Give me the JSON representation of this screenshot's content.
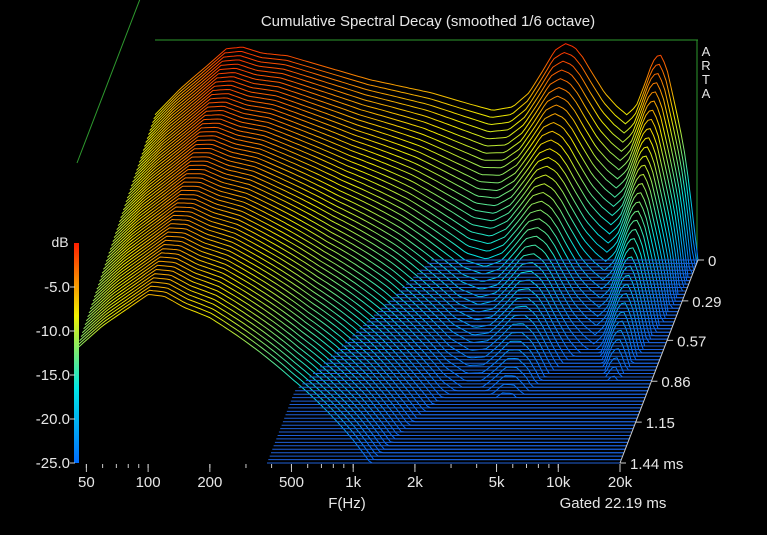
{
  "chart_data": {
    "type": "area",
    "title": "Cumulative Spectral Decay (smoothed 1/6 octave)",
    "xlabel": "F(Hz)",
    "ylabel": "dB",
    "zlabel_unit": "ms",
    "watermark": "ARTA",
    "gate_text": "Gated 22.19 ms",
    "x_scale": "log",
    "xlim": [
      45,
      20000
    ],
    "ylim": [
      -25,
      0
    ],
    "zlim": [
      0,
      1.44
    ],
    "x_ticks": [
      {
        "value": 50,
        "label": "50"
      },
      {
        "value": 100,
        "label": "100"
      },
      {
        "value": 200,
        "label": "200"
      },
      {
        "value": 500,
        "label": "500"
      },
      {
        "value": 1000,
        "label": "1k"
      },
      {
        "value": 2000,
        "label": "2k"
      },
      {
        "value": 5000,
        "label": "5k"
      },
      {
        "value": 10000,
        "label": "10k"
      },
      {
        "value": 20000,
        "label": "20k"
      }
    ],
    "y_ticks": [
      {
        "value": -5,
        "label": "-5.0"
      },
      {
        "value": -10,
        "label": "-10.0"
      },
      {
        "value": -15,
        "label": "-15.0"
      },
      {
        "value": -20,
        "label": "-20.0"
      },
      {
        "value": -25,
        "label": "-25.0"
      }
    ],
    "z_ticks": [
      {
        "value": 0,
        "label": "0"
      },
      {
        "value": 0.29,
        "label": "0.29"
      },
      {
        "value": 0.57,
        "label": "0.57"
      },
      {
        "value": 0.86,
        "label": "0.86"
      },
      {
        "value": 1.15,
        "label": "1.15"
      },
      {
        "value": 1.44,
        "label": "1.44 ms"
      }
    ],
    "colorbar": {
      "min": -25,
      "max": 0,
      "colors": [
        "#0080ff",
        "#00ffff",
        "#ffff00",
        "#ff0000"
      ]
    },
    "base_response": {
      "freq_hz": [
        45,
        60,
        80,
        100,
        120,
        150,
        200,
        300,
        500,
        1000,
        1500,
        2000,
        2500,
        3000,
        3500,
        4000,
        4500,
        5000,
        5500,
        6000,
        7000,
        8000,
        9000,
        10000,
        11000,
        12000,
        13000,
        14000,
        15000,
        16000,
        17000,
        18000,
        20000
      ],
      "db": [
        -8.5,
        -5.5,
        -3.0,
        -1.0,
        -0.8,
        -1.5,
        -1.8,
        -3.0,
        -4.5,
        -6.0,
        -7.2,
        -8.0,
        -7.6,
        -6.0,
        -3.5,
        -1.2,
        -0.4,
        -0.8,
        -2.0,
        -3.5,
        -6.0,
        -7.5,
        -8.5,
        -7.5,
        -5.0,
        -2.5,
        -1.5,
        -3.0,
        -6.0,
        -9.0,
        -12.0,
        -16.0,
        -25.0
      ]
    },
    "decay_slices": 60
  }
}
